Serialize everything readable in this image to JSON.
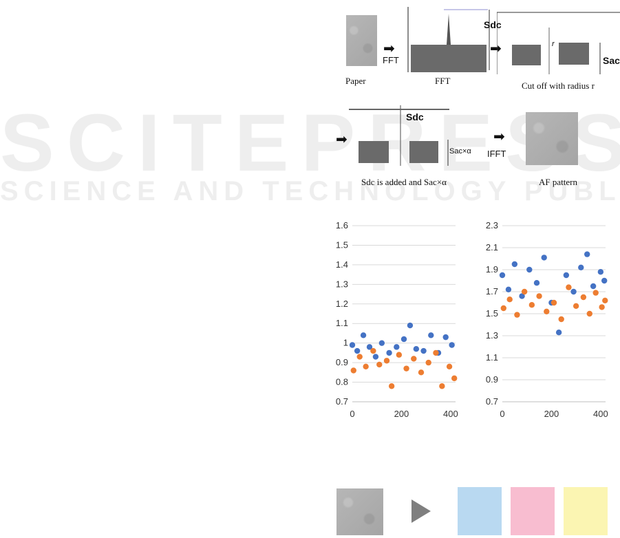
{
  "watermark": {
    "main": "SCITEPRESS",
    "sub": "SCIENCE AND TECHNOLOGY PUBLICATIONS"
  },
  "figure_top": {
    "step1_caption": "Paper",
    "step2_caption": "FFT",
    "step3_caption": "Cut off with radius r",
    "step4_caption": "Sdc is added and Sac×α",
    "step5_caption": "AF pattern",
    "arrow1_label": "FFT",
    "arrow2_label": "IFFT",
    "sdc_label": "Sdc",
    "sac_label": "Sac",
    "sac_alpha_label": "Sac×α",
    "radius_label": "r"
  },
  "chart_data": [
    {
      "type": "scatter",
      "title": "",
      "xlabel": "",
      "ylabel": "",
      "xlim": [
        0,
        420
      ],
      "ylim": [
        0.7,
        1.6
      ],
      "xticks": [
        0,
        200,
        400
      ],
      "yticks": [
        0.7,
        0.8,
        0.9,
        1,
        1.1,
        1.2,
        1.3,
        1.4,
        1.5,
        1.6
      ],
      "grid": true,
      "legend": "none",
      "series": [
        {
          "color": "#4472c4",
          "x": [
            0,
            20,
            45,
            70,
            95,
            120,
            150,
            180,
            210,
            235,
            260,
            290,
            320,
            350,
            380,
            405
          ],
          "y": [
            0.99,
            0.96,
            1.04,
            0.98,
            0.93,
            1.0,
            0.95,
            0.98,
            1.02,
            1.09,
            0.97,
            0.96,
            1.04,
            0.95,
            1.03,
            0.99
          ]
        },
        {
          "color": "#ed7d31",
          "x": [
            5,
            30,
            55,
            85,
            110,
            140,
            160,
            190,
            220,
            250,
            280,
            310,
            340,
            365,
            395,
            415
          ],
          "y": [
            0.86,
            0.93,
            0.88,
            0.96,
            0.89,
            0.91,
            0.78,
            0.94,
            0.87,
            0.92,
            0.85,
            0.9,
            0.95,
            0.78,
            0.88,
            0.82
          ]
        }
      ]
    },
    {
      "type": "scatter",
      "title": "",
      "xlabel": "",
      "ylabel": "",
      "xlim": [
        0,
        420
      ],
      "ylim": [
        0.7,
        2.3
      ],
      "xticks": [
        0,
        200,
        400
      ],
      "yticks": [
        0.7,
        0.9,
        1.1,
        1.3,
        1.5,
        1.7,
        1.9,
        2.1,
        2.3
      ],
      "grid": true,
      "legend": "none",
      "series": [
        {
          "color": "#4472c4",
          "x": [
            0,
            25,
            50,
            80,
            110,
            140,
            170,
            200,
            230,
            260,
            290,
            320,
            345,
            370,
            400,
            415
          ],
          "y": [
            1.85,
            1.72,
            1.95,
            1.66,
            1.9,
            1.78,
            2.01,
            1.6,
            1.33,
            1.85,
            1.7,
            1.92,
            2.04,
            1.75,
            1.88,
            1.8
          ]
        },
        {
          "color": "#ed7d31",
          "x": [
            5,
            30,
            60,
            90,
            120,
            150,
            180,
            210,
            240,
            270,
            300,
            330,
            355,
            380,
            405,
            418
          ],
          "y": [
            1.55,
            1.63,
            1.49,
            1.7,
            1.58,
            1.66,
            1.52,
            1.6,
            1.45,
            1.74,
            1.57,
            1.65,
            1.5,
            1.69,
            1.56,
            1.62
          ]
        }
      ]
    }
  ],
  "bottom_row": {
    "arrow_icon": "play-triangle-icon",
    "swatch_colors": [
      "#b9d9f1",
      "#f8bdd0",
      "#fbf5b2"
    ]
  }
}
